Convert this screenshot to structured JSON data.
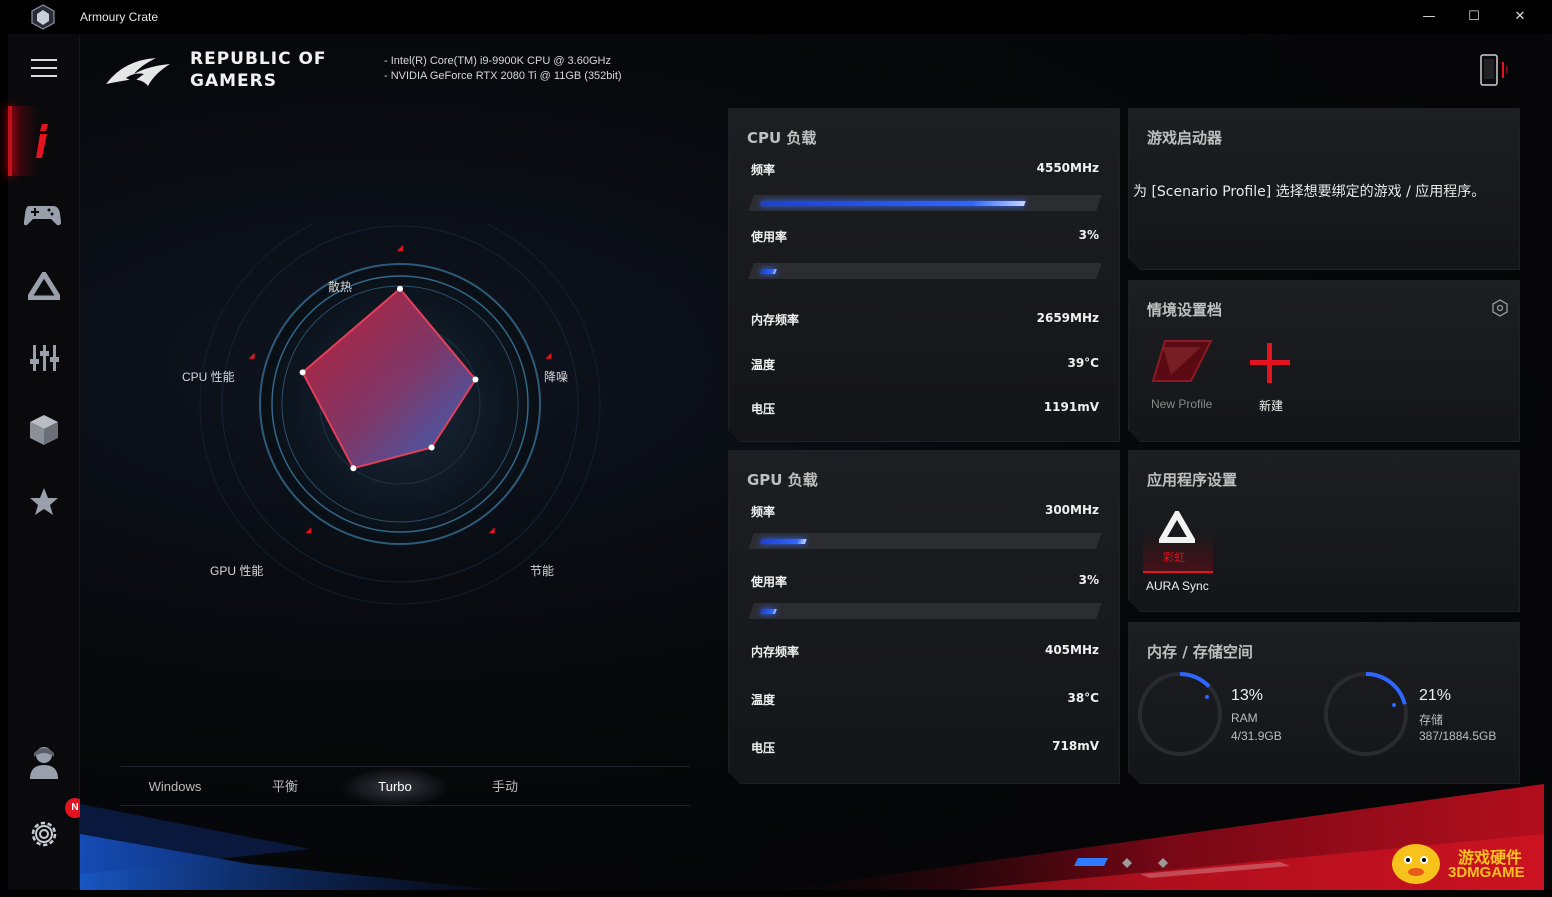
{
  "window": {
    "title": "Armoury Crate",
    "minimize": "—",
    "maximize": "☐",
    "close": "✕"
  },
  "sidebar": {
    "items": [
      {
        "name": "menu-icon"
      },
      {
        "name": "info-icon"
      },
      {
        "name": "gamepad-icon"
      },
      {
        "name": "aura-icon"
      },
      {
        "name": "sliders-icon"
      },
      {
        "name": "cube-icon"
      },
      {
        "name": "star-icon"
      },
      {
        "name": "user-icon"
      },
      {
        "name": "gear-icon"
      }
    ],
    "badge": "N"
  },
  "header": {
    "brand_line1": "REPUBLIC OF",
    "brand_line2": "GAMERS",
    "cpu_spec": "-    Intel(R) Core(TM) i9-9900K CPU @ 3.60GHz",
    "gpu_spec": "-    NVIDIA GeForce RTX 2080 Ti @ 11GB (352bit)"
  },
  "radar": {
    "labels": {
      "cooling": "散热",
      "noise": "降噪",
      "power_saving": "节能",
      "gpu_perf": "GPU 性能",
      "cpu_perf": "CPU 性能"
    },
    "values": {
      "cooling": 0.9,
      "noise": 0.62,
      "power_saving": 0.42,
      "gpu_perf": 0.62,
      "cpu_perf": 0.8
    }
  },
  "modes": {
    "items": [
      "Windows",
      "平衡",
      "Turbo",
      "手动"
    ],
    "active": "Turbo"
  },
  "cpu_panel": {
    "title": "CPU 负载",
    "freq_label": "频率",
    "freq_value": "4550MHz",
    "freq_fraction": 0.88,
    "usage_label": "使用率",
    "usage_value": "3%",
    "usage_fraction": 0.03,
    "mem_freq_label": "内存频率",
    "mem_freq_value": "2659MHz",
    "temp_label": "温度",
    "temp_value": "39°C",
    "volt_label": "电压",
    "volt_value": "1191mV"
  },
  "gpu_panel": {
    "title": "GPU 负载",
    "freq_label": "频率",
    "freq_value": "300MHz",
    "freq_fraction": 0.15,
    "usage_label": "使用率",
    "usage_value": "3%",
    "usage_fraction": 0.03,
    "mem_freq_label": "内存频率",
    "mem_freq_value": "405MHz",
    "temp_label": "温度",
    "temp_value": "38°C",
    "volt_label": "电压",
    "volt_value": "718mV"
  },
  "launcher_panel": {
    "title": "游戏启动器",
    "message": "为 [Scenario Profile] 选择想要绑定的游戏 / 应用程序。"
  },
  "scenario_panel": {
    "title": "情境设置档",
    "new_profile": "New Profile",
    "create": "新建"
  },
  "app_settings_panel": {
    "title": "应用程序设置",
    "effect_label": "彩虹",
    "app_name": "AURA Sync"
  },
  "storage_panel": {
    "title": "内存 / 存储空间",
    "ram": {
      "percent": "13%",
      "label": "RAM",
      "detail": "4/31.9GB",
      "fraction": 0.13
    },
    "storage": {
      "percent": "21%",
      "label": "存储",
      "detail": "387/1884.5GB",
      "fraction": 0.21
    }
  },
  "colors": {
    "accent_red": "#e3131f",
    "accent_blue": "#2f66ff",
    "panel_bg": "#17181b"
  },
  "watermark": {
    "line1": "游戏硬件",
    "line2": "3DMGAME"
  }
}
